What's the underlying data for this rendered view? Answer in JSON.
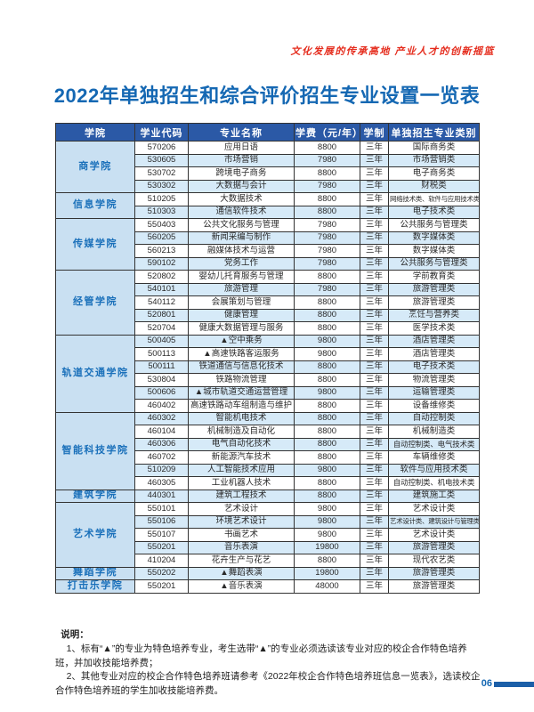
{
  "slogan": "文化发展的传承高地  产业人才的创新摇篮",
  "title": "2022年单独招生和综合评价招生专业设置一览表",
  "table": {
    "headers": [
      "学院",
      "学业代码",
      "专业名称",
      "学费（元/年）",
      "学制",
      "单独招生专业类别"
    ],
    "colleges": [
      {
        "name": "商学院",
        "majors": [
          {
            "code": "570206",
            "major": "应用日语",
            "tuition": "8800",
            "duration": "三年",
            "category": "国际商务类"
          },
          {
            "code": "530605",
            "major": "市场营销",
            "tuition": "7980",
            "duration": "三年",
            "category": "市场营销类"
          },
          {
            "code": "530702",
            "major": "跨境电子商务",
            "tuition": "8800",
            "duration": "三年",
            "category": "电子商务类"
          },
          {
            "code": "530302",
            "major": "大数据与会计",
            "tuition": "7980",
            "duration": "三年",
            "category": "财税类"
          }
        ]
      },
      {
        "name": "信息学院",
        "majors": [
          {
            "code": "510205",
            "major": "大数据技术",
            "tuition": "8800",
            "duration": "三年",
            "category": "网络技术类、软件与应用技术类"
          },
          {
            "code": "510303",
            "major": "通信软件技术",
            "tuition": "8800",
            "duration": "三年",
            "category": "电子技术类"
          }
        ]
      },
      {
        "name": "传媒学院",
        "majors": [
          {
            "code": "550403",
            "major": "公共文化服务与管理",
            "tuition": "7980",
            "duration": "三年",
            "category": "公共服务与管理类"
          },
          {
            "code": "560205",
            "major": "新闻采编与制作",
            "tuition": "7980",
            "duration": "三年",
            "category": "数字媒体类"
          },
          {
            "code": "560213",
            "major": "融媒体技术与运营",
            "tuition": "7980",
            "duration": "三年",
            "category": "数字媒体类"
          },
          {
            "code": "590102",
            "major": "党务工作",
            "tuition": "7980",
            "duration": "三年",
            "category": "公共服务与管理类"
          }
        ]
      },
      {
        "name": "经管学院",
        "majors": [
          {
            "code": "520802",
            "major": "婴幼儿托育服务与管理",
            "tuition": "8800",
            "duration": "三年",
            "category": "学前教育类"
          },
          {
            "code": "540101",
            "major": "旅游管理",
            "tuition": "7980",
            "duration": "三年",
            "category": "旅游管理类"
          },
          {
            "code": "540112",
            "major": "会展策划与管理",
            "tuition": "8800",
            "duration": "三年",
            "category": "旅游管理类"
          },
          {
            "code": "520801",
            "major": "健康管理",
            "tuition": "8800",
            "duration": "三年",
            "category": "烹饪与营养类"
          },
          {
            "code": "520704",
            "major": "健康大数据管理与服务",
            "tuition": "8800",
            "duration": "三年",
            "category": "医学技术类"
          }
        ]
      },
      {
        "name": "轨道交通学院",
        "majors": [
          {
            "code": "500405",
            "major": "▲空中乘务",
            "tuition": "9800",
            "duration": "三年",
            "category": "酒店管理类"
          },
          {
            "code": "500113",
            "major": "▲高速铁路客运服务",
            "tuition": "9800",
            "duration": "三年",
            "category": "酒店管理类"
          },
          {
            "code": "500111",
            "major": "铁道通信与信息化技术",
            "tuition": "8800",
            "duration": "三年",
            "category": "电子技术类"
          },
          {
            "code": "530804",
            "major": "铁路物流管理",
            "tuition": "8800",
            "duration": "三年",
            "category": "物流管理类"
          },
          {
            "code": "500606",
            "major": "▲城市轨道交通运营管理",
            "tuition": "9800",
            "duration": "三年",
            "category": "运输管理类"
          },
          {
            "code": "460402",
            "major": "高速铁路动车组制造与维护",
            "tuition": "8800",
            "duration": "三年",
            "category": "设备维修类"
          }
        ]
      },
      {
        "name": "智能科技学院",
        "majors": [
          {
            "code": "460302",
            "major": "智能机电技术",
            "tuition": "8800",
            "duration": "三年",
            "category": "自动控制类"
          },
          {
            "code": "460104",
            "major": "机械制造及自动化",
            "tuition": "8800",
            "duration": "三年",
            "category": "机械制造类"
          },
          {
            "code": "460306",
            "major": "电气自动化技术",
            "tuition": "8800",
            "duration": "三年",
            "category": "自动控制类、电气技术类"
          },
          {
            "code": "460702",
            "major": "新能源汽车技术",
            "tuition": "8800",
            "duration": "三年",
            "category": "车辆维修类"
          },
          {
            "code": "510209",
            "major": "人工智能技术应用",
            "tuition": "9800",
            "duration": "三年",
            "category": "软件与应用技术类"
          },
          {
            "code": "460305",
            "major": "工业机器人技术",
            "tuition": "8800",
            "duration": "三年",
            "category": "自动控制类、机电技术类"
          }
        ]
      },
      {
        "name": "建筑学院",
        "majors": [
          {
            "code": "440301",
            "major": "建筑工程技术",
            "tuition": "8800",
            "duration": "三年",
            "category": "建筑施工类"
          }
        ]
      },
      {
        "name": "艺术学院",
        "majors": [
          {
            "code": "550101",
            "major": "艺术设计",
            "tuition": "9800",
            "duration": "三年",
            "category": "艺术设计类"
          },
          {
            "code": "550106",
            "major": "环境艺术设计",
            "tuition": "9800",
            "duration": "三年",
            "category": "艺术设计类、建筑设计与管理类"
          },
          {
            "code": "550107",
            "major": "书画艺术",
            "tuition": "9800",
            "duration": "三年",
            "category": "艺术设计类"
          },
          {
            "code": "550201",
            "major": "音乐表演",
            "tuition": "19800",
            "duration": "三年",
            "category": "旅游管理类"
          },
          {
            "code": "410204",
            "major": "花卉生产与花艺",
            "tuition": "8800",
            "duration": "三年",
            "category": "现代农艺类"
          }
        ]
      },
      {
        "name": "舞蹈学院",
        "majors": [
          {
            "code": "550202",
            "major": "▲舞蹈表演",
            "tuition": "19800",
            "duration": "三年",
            "category": "旅游管理类"
          }
        ]
      },
      {
        "name": "打击乐学院",
        "majors": [
          {
            "code": "550201",
            "major": "▲音乐表演",
            "tuition": "48000",
            "duration": "三年",
            "category": "旅游管理类"
          }
        ]
      }
    ]
  },
  "notes": {
    "label": "说明：",
    "items": [
      "1、标有“▲”的专业为特色培养专业，考生选带“▲”的专业必须选读该专业对应的校企合作特色培养班，并加收技能培养费；",
      "2、其他专业对应的校企合作特色培养班请参考《2022年校企合作特色培养班信息一览表》，选读校企合作特色培养班的学生加收技能培养费。"
    ]
  },
  "page_number": "06",
  "colors": {
    "header_bg": "#2b59a6",
    "row_alt_bg": "#d6eaf8",
    "college_bg": "#c9e0f2",
    "college_text": "#1a70ba",
    "title_blue": "#1568b3",
    "slogan_red": "#e52d1e",
    "page_bar_blue": "#1b5fa8"
  }
}
